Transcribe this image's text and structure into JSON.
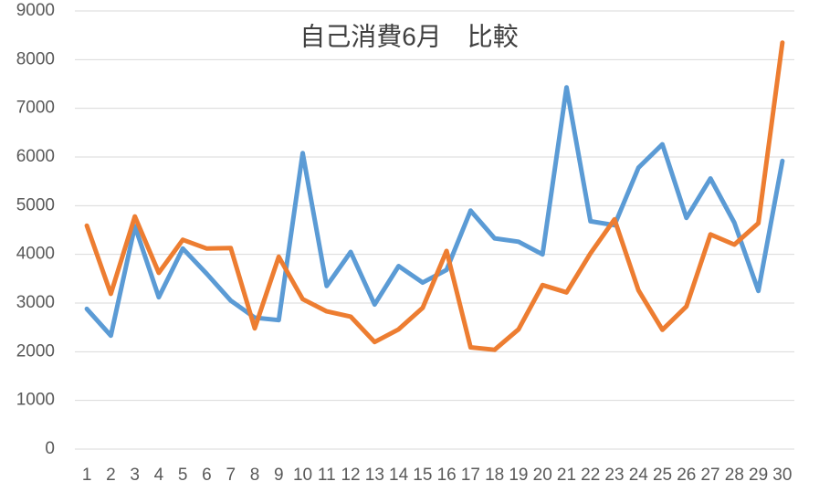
{
  "chart_data": {
    "type": "line",
    "title": "自己消費6月　比較",
    "categories": [
      "1",
      "2",
      "3",
      "4",
      "5",
      "6",
      "7",
      "8",
      "9",
      "10",
      "11",
      "12",
      "13",
      "14",
      "15",
      "16",
      "17",
      "18",
      "19",
      "20",
      "21",
      "22",
      "23",
      "24",
      "25",
      "26",
      "27",
      "28",
      "29",
      "30"
    ],
    "series": [
      {
        "color": "#5b9bd5",
        "values": [
          2880,
          2330,
          4580,
          3120,
          4120,
          3600,
          3050,
          2700,
          2650,
          6080,
          3350,
          4050,
          2970,
          3760,
          3420,
          3680,
          4900,
          4330,
          4260,
          4000,
          7430,
          4680,
          4600,
          5780,
          6260,
          4750,
          5560,
          4650,
          3250,
          5920
        ]
      },
      {
        "color": "#ed7d31",
        "values": [
          4590,
          3190,
          4780,
          3620,
          4300,
          4120,
          4130,
          2480,
          3950,
          3080,
          2830,
          2720,
          2200,
          2460,
          2900,
          4070,
          2090,
          2040,
          2460,
          3370,
          3220,
          4020,
          4720,
          3260,
          2450,
          2930,
          4410,
          4200,
          4640,
          8350
        ]
      }
    ],
    "ylim": [
      0,
      9000
    ],
    "yticks": [
      0,
      1000,
      2000,
      3000,
      4000,
      5000,
      6000,
      7000,
      8000,
      9000
    ],
    "grid": true
  }
}
